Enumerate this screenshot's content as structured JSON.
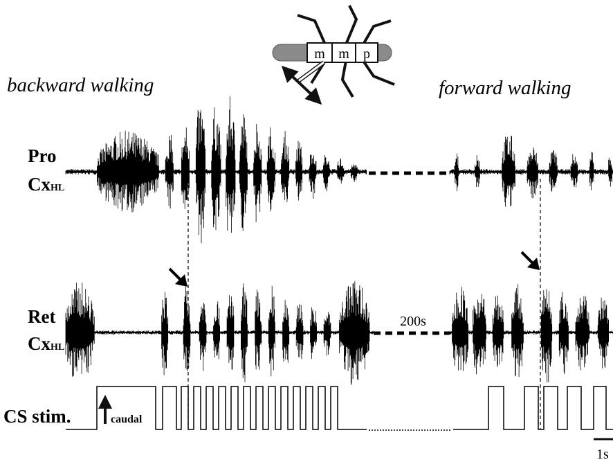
{
  "header": {
    "left": "backward walking",
    "right": "forward walking"
  },
  "animal": {
    "segments": [
      "m",
      "m",
      "p"
    ]
  },
  "traces": [
    {
      "name": "Pro",
      "muscle": "Cx",
      "sub": "HL"
    },
    {
      "name": "Ret",
      "muscle": "Cx",
      "sub": "HL"
    }
  ],
  "stim": {
    "label": "CS stim.",
    "direction": "caudal"
  },
  "gap": "200s",
  "scale": "1s"
}
